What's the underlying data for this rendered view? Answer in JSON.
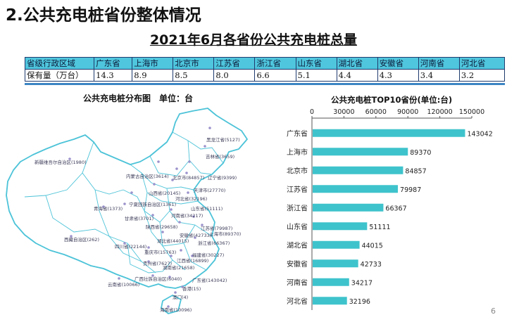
{
  "slide": {
    "title": "2.公共充电桩省份整体情况",
    "page_number": "6"
  },
  "table": {
    "title": "2021年6月各省份公共充电桩总量",
    "row_header_1": "省级行政区域",
    "row_header_2": "保有量（万台）",
    "provinces": [
      "广东省",
      "上海市",
      "北京市",
      "江苏省",
      "浙江省",
      "山东省",
      "湖北省",
      "安徽省",
      "河南省",
      "河北省"
    ],
    "values": [
      "14.3",
      "8.9",
      "8.5",
      "8.0",
      "6.6",
      "5.1",
      "4.4",
      "4.3",
      "3.4",
      "3.2"
    ]
  },
  "map": {
    "title": "公共充电桩分布图　单位：台",
    "labels": [
      "黑龙江省(5127)",
      "吉林省(3659)",
      "辽宁省(9399)",
      "新疆维吾尔自治区(1980)",
      "内蒙古自治区(3614)",
      "北京市(84857)",
      "天津市(27770)",
      "河北省(32196)",
      "山西省(20145)",
      "宁夏回族自治区(1361)",
      "山东省(51111)",
      "青海省(1373)",
      "甘肃省(3701)",
      "陕西省(29658)",
      "河南省(34217)",
      "江苏省(79987)",
      "上海市(89370)",
      "安徽省(42733)",
      "湖北省(44015)",
      "浙江省(66367)",
      "西藏自治区(262)",
      "四川省(22144)",
      "重庆市(15763)",
      "湖南省(21658)",
      "江西省(16899)",
      "福建省(30227)",
      "贵州省(7627)",
      "云南省(10066)",
      "广西壮族自治区(6040)",
      "广东省(143042)",
      "香港(15)",
      "澳门(4)",
      "海南省(10096)"
    ]
  },
  "chart_data": {
    "type": "bar",
    "orientation": "horizontal",
    "title": "公共充电桩TOP10省份(单位:台)",
    "categories": [
      "广东省",
      "上海市",
      "北京市",
      "江苏省",
      "浙江省",
      "山东省",
      "湖北省",
      "安徽省",
      "河南省",
      "河北省"
    ],
    "values": [
      143042,
      89370,
      84857,
      79987,
      66367,
      51111,
      44015,
      42733,
      34217,
      32196
    ],
    "xlim": [
      0,
      150000
    ],
    "xticks": [
      "0",
      "30000",
      "60000",
      "90000",
      "120000",
      "150000"
    ],
    "axis_position": "top",
    "bar_color": "#3ec3cc",
    "grid": false
  }
}
